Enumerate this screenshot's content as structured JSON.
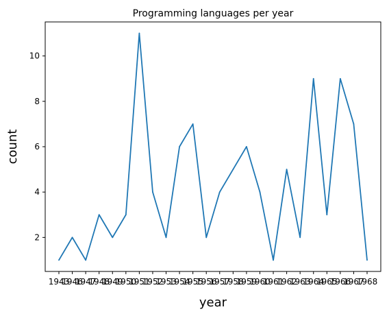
{
  "chart_data": {
    "type": "line",
    "title": "Programming languages per year",
    "xlabel": "year",
    "ylabel": "count",
    "x": [
      "1943",
      "1946",
      "1947",
      "1948",
      "1949",
      "1950",
      "1951",
      "1952",
      "1953",
      "1954",
      "1955",
      "1956",
      "1957",
      "1958",
      "1959",
      "1960",
      "1961",
      "1962",
      "1963",
      "1964",
      "1965",
      "1966",
      "1967",
      "1968"
    ],
    "series": [
      {
        "name": "count",
        "values": [
          1,
          2,
          1,
          3,
          2,
          3,
          11,
          4,
          2,
          6,
          7,
          2,
          4,
          5,
          6,
          4,
          1,
          5,
          2,
          9,
          3,
          9,
          7,
          1
        ]
      }
    ],
    "yticks": [
      2,
      4,
      6,
      8,
      10
    ],
    "ylim": [
      0.5,
      11.5
    ],
    "grid": false,
    "line_color": "#1f77b4"
  }
}
